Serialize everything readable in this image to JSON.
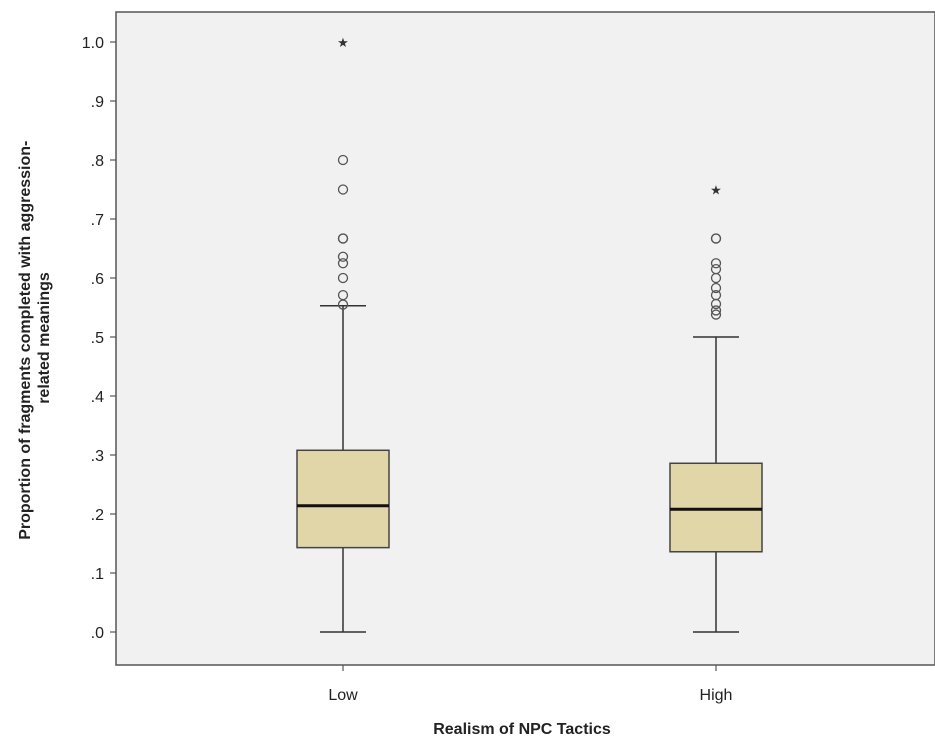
{
  "chart_data": {
    "type": "boxplot",
    "title": "",
    "xlabel": "Realism of NPC Tactics",
    "ylabel_lines": [
      "Proportion of fragments completed with aggression-",
      "related meanings"
    ],
    "categories": [
      "Low",
      "High"
    ],
    "ylim": [
      0,
      1.0
    ],
    "yticks": [
      ".0",
      ".1",
      ".2",
      ".3",
      ".4",
      ".5",
      ".6",
      ".7",
      ".8",
      ".9",
      "1.0"
    ],
    "ytick_values": [
      0,
      0.1,
      0.2,
      0.3,
      0.4,
      0.5,
      0.6,
      0.7,
      0.8,
      0.9,
      1.0
    ],
    "grid": false,
    "colors": {
      "plot_background": "#f1f1f1",
      "box_fill": "#e0d6a8",
      "box_stroke": "#444444",
      "median": "#111111"
    },
    "boxes": [
      {
        "category": "Low",
        "whisker_low": 0.0,
        "q1": 0.143,
        "median": 0.214,
        "q3": 0.308,
        "whisker_high": 0.553,
        "outliers": [
          0.555,
          0.571,
          0.6,
          0.625,
          0.636,
          0.667,
          0.667,
          0.75,
          0.8
        ],
        "extremes": [
          1.0
        ]
      },
      {
        "category": "High",
        "whisker_low": 0.0,
        "q1": 0.136,
        "median": 0.208,
        "q3": 0.286,
        "whisker_high": 0.5,
        "outliers": [
          0.538,
          0.545,
          0.556,
          0.571,
          0.583,
          0.6,
          0.615,
          0.625,
          0.667,
          0.667
        ],
        "extremes": [
          0.75
        ]
      }
    ]
  }
}
